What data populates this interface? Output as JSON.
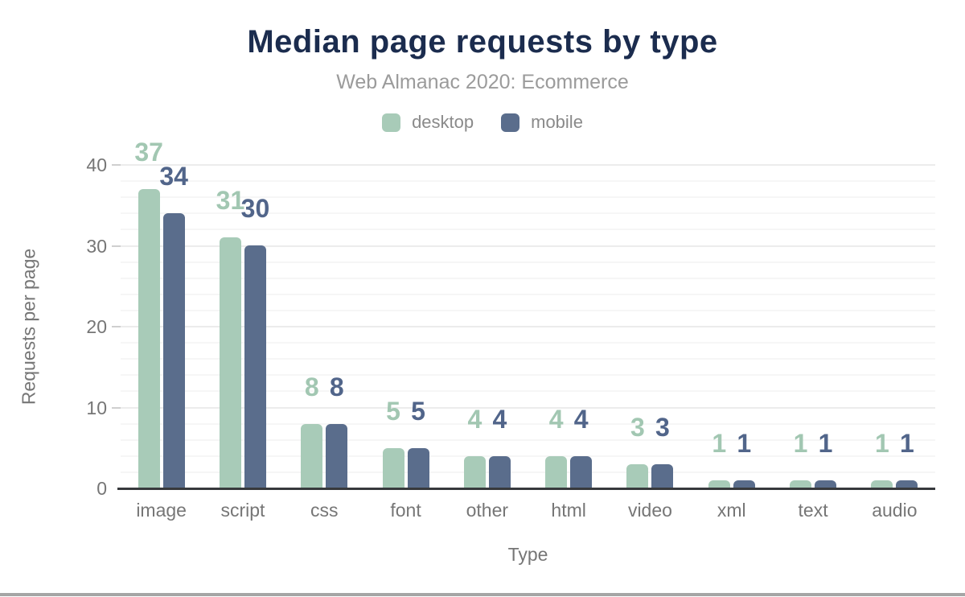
{
  "page": {
    "title": "Median page requests by type",
    "subtitle": "Web Almanac 2020: Ecommerce"
  },
  "chart_data": {
    "type": "bar",
    "title": "Median page requests by type",
    "subtitle": "Web Almanac 2020: Ecommerce",
    "categories": [
      "image",
      "script",
      "css",
      "font",
      "other",
      "html",
      "video",
      "xml",
      "text",
      "audio"
    ],
    "series": [
      {
        "name": "desktop",
        "color": "#a8cbb8",
        "label_color": "#a2c7b2",
        "values": [
          37,
          31,
          8,
          5,
          4,
          4,
          3,
          1,
          1,
          1
        ]
      },
      {
        "name": "mobile",
        "color": "#5a6d8c",
        "label_color": "#51658a",
        "values": [
          34,
          30,
          8,
          5,
          4,
          4,
          3,
          1,
          1,
          1
        ]
      }
    ],
    "xlabel": "Type",
    "ylabel": "Requests per page",
    "ylim": [
      0,
      40
    ],
    "yticks": [
      0,
      10,
      20,
      30,
      40
    ],
    "minor_grid_step": 2,
    "grid": true,
    "legend_position": "top",
    "bar_labels_shown": true
  },
  "colors": {
    "title": "#1b2c4e",
    "subtitle": "#9b9b9b",
    "axis_text": "#767676",
    "legend_text": "#8a8a8a",
    "axis_line": "#37393c",
    "grid_minor": "#f6f6f6",
    "grid_major": "#ececec",
    "tick_mark": "#cfcfcf",
    "footer_rule": "#a5a5a5",
    "background": "#ffffff"
  }
}
